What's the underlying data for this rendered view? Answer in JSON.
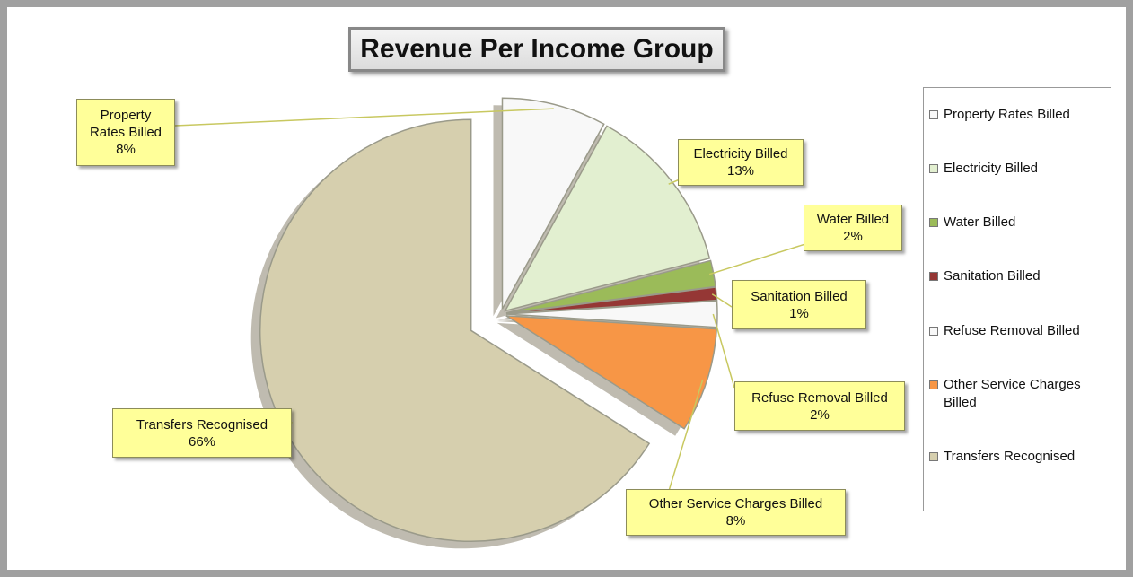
{
  "chart_data": {
    "type": "pie",
    "title": "Revenue Per Income Group",
    "categories": [
      "Property Rates Billed",
      "Electricity Billed",
      "Water Billed",
      "Sanitation Billed",
      "Refuse Removal Billed",
      "Other Service Charges Billed",
      "Transfers Recognised"
    ],
    "values": [
      8,
      13,
      2,
      1,
      2,
      8,
      66
    ],
    "value_labels": [
      "8%",
      "13%",
      "2%",
      "1%",
      "2%",
      "8%",
      "66%"
    ],
    "colors": [
      "#f8f8f8",
      "#e2efd0",
      "#9bbb59",
      "#953735",
      "#f8f8f8",
      "#f79646",
      "#d6cfae"
    ],
    "legend": "right"
  }
}
